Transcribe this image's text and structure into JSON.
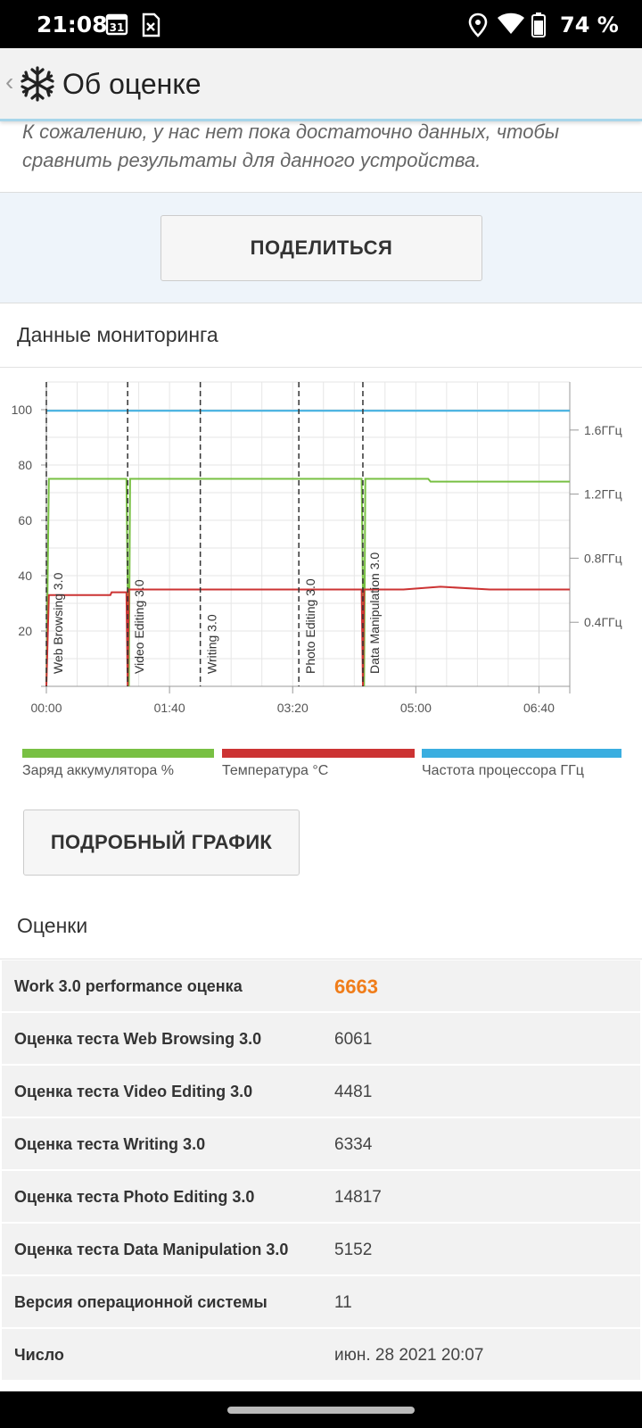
{
  "status_bar": {
    "time": "21:08",
    "calendar_day": "31",
    "battery": "74 %"
  },
  "app_bar": {
    "title": "Об оценке"
  },
  "info": {
    "text": "К сожалению, у нас нет пока достаточно данных, чтобы сравнить результаты для данного устройства."
  },
  "share_button": "ПОДЕЛИТЬСЯ",
  "monitoring": {
    "title": "Данные мониторинга",
    "detail_button": "ПОДРОБНЫЙ ГРАФИК",
    "legend": [
      {
        "label": "Заряд аккумулятора %",
        "color": "#78c043"
      },
      {
        "label": "Температура °C",
        "color": "#cc3333"
      },
      {
        "label": "Частота процессора ГГц",
        "color": "#3aaee0"
      }
    ]
  },
  "chart_data": {
    "type": "line",
    "x_unit": "seconds",
    "xlim": [
      0,
      425
    ],
    "ylim": [
      0,
      110
    ],
    "y2lim": [
      0,
      1.9
    ],
    "x_ticks": [
      {
        "value": 0,
        "label": "00:00"
      },
      {
        "value": 100,
        "label": "01:40"
      },
      {
        "value": 200,
        "label": "03:20"
      },
      {
        "value": 300,
        "label": "05:00"
      },
      {
        "value": 400,
        "label": "06:40"
      }
    ],
    "y_ticks": [
      20,
      40,
      60,
      80,
      100
    ],
    "y2_ticks": [
      {
        "value": 0.4,
        "label": "0.4ГГц"
      },
      {
        "value": 0.8,
        "label": "0.8ГГц"
      },
      {
        "value": 1.2,
        "label": "1.2ГГц"
      },
      {
        "value": 1.6,
        "label": "1.6ГГц"
      }
    ],
    "markers": [
      {
        "x": 0,
        "label": "Web Browsing 3.0"
      },
      {
        "x": 66,
        "label": "Video Editing 3.0"
      },
      {
        "x": 125,
        "label": "Writing 3.0"
      },
      {
        "x": 205,
        "label": "Photo Editing 3.0"
      },
      {
        "x": 257,
        "label": "Data Manipulation 3.0"
      }
    ],
    "series": [
      {
        "name": "Заряд аккумулятора %",
        "color": "#78c043",
        "axis": "left",
        "points": [
          [
            0,
            0
          ],
          [
            2,
            75
          ],
          [
            65,
            75
          ],
          [
            66,
            35
          ],
          [
            67,
            0
          ],
          [
            68,
            75
          ],
          [
            256,
            75
          ],
          [
            257,
            35
          ],
          [
            258,
            0
          ],
          [
            259,
            75
          ],
          [
            310,
            75
          ],
          [
            312,
            74
          ],
          [
            425,
            74
          ]
        ]
      },
      {
        "name": "Температура °C",
        "color": "#cc3333",
        "axis": "left",
        "points": [
          [
            0,
            0
          ],
          [
            2,
            33
          ],
          [
            52,
            33
          ],
          [
            53,
            34
          ],
          [
            65,
            34
          ],
          [
            66,
            0
          ],
          [
            67,
            35
          ],
          [
            112,
            35
          ],
          [
            113,
            35
          ],
          [
            170,
            35
          ],
          [
            256,
            35
          ],
          [
            257,
            0
          ],
          [
            258,
            35
          ],
          [
            290,
            35
          ],
          [
            320,
            36
          ],
          [
            360,
            35
          ],
          [
            425,
            35
          ]
        ]
      },
      {
        "name": "Частота процессора ГГц",
        "color": "#3aaee0",
        "axis": "right",
        "points": [
          [
            0,
            1.72
          ],
          [
            425,
            1.72
          ]
        ]
      }
    ]
  },
  "scores": {
    "title": "Оценки",
    "rows": [
      {
        "label": "Work 3.0 performance оценка",
        "value": "6663",
        "primary": true
      },
      {
        "label": "Оценка теста Web Browsing 3.0",
        "value": "6061"
      },
      {
        "label": "Оценка теста Video Editing 3.0",
        "value": "4481"
      },
      {
        "label": "Оценка теста Writing 3.0",
        "value": "6334"
      },
      {
        "label": "Оценка теста Photo Editing 3.0",
        "value": "14817"
      },
      {
        "label": "Оценка теста Data Manipulation 3.0",
        "value": "5152"
      },
      {
        "label": "Версия операционной системы",
        "value": "11"
      },
      {
        "label": "Число",
        "value": "июн. 28 2021 20:07"
      }
    ]
  }
}
